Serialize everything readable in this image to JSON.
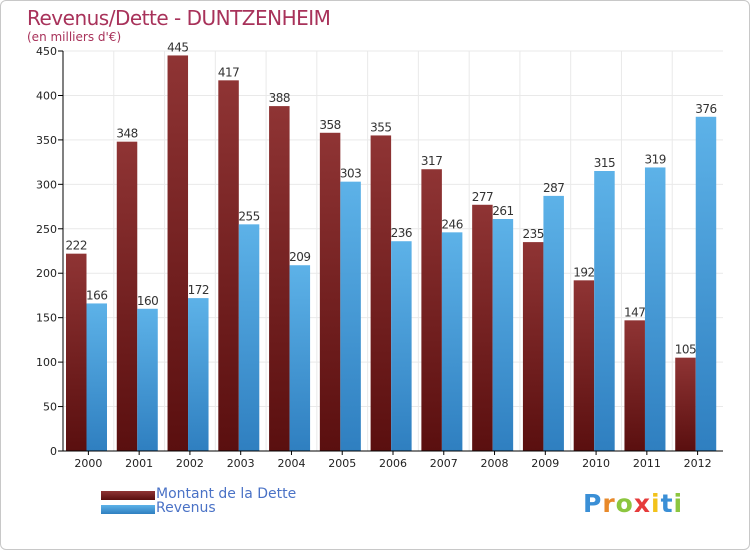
{
  "title": "Revenus/Dette - DUNTZENHEIM",
  "subtitle": "(en milliers d'€)",
  "logo_text": "Proxiti",
  "colors": {
    "dette": "#7a1f1f",
    "dette_light": "#8f3434",
    "revenus": "#3d9ad8",
    "revenus_light": "#5db2e8",
    "title": "#a8325a",
    "legend_text": "#4a72c6",
    "grid": "#e9e9e9",
    "axis": "#000000"
  },
  "chart_data": {
    "type": "bar",
    "categories": [
      "2000",
      "2001",
      "2002",
      "2003",
      "2004",
      "2005",
      "2006",
      "2007",
      "2008",
      "2009",
      "2010",
      "2011",
      "2012"
    ],
    "series": [
      {
        "name": "Montant de la Dette",
        "values": [
          222,
          348,
          445,
          417,
          388,
          358,
          355,
          317,
          277,
          235,
          192,
          147,
          105
        ]
      },
      {
        "name": "Revenus",
        "values": [
          166,
          160,
          172,
          255,
          209,
          303,
          236,
          246,
          261,
          287,
          315,
          319,
          376
        ]
      }
    ],
    "ylim": [
      0,
      450
    ],
    "yticks": [
      0,
      50,
      100,
      150,
      200,
      250,
      300,
      350,
      400,
      450
    ],
    "grid": true,
    "legend_position": "bottom-left"
  }
}
